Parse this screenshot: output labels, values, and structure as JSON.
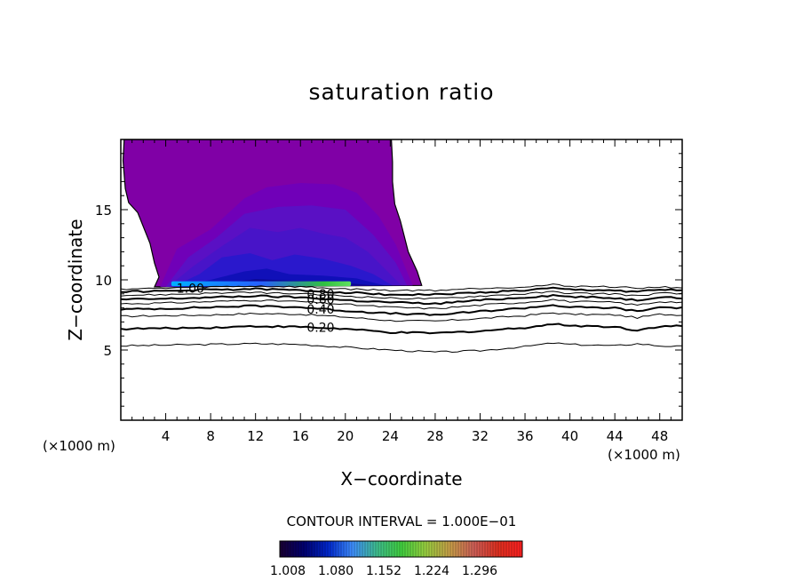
{
  "chart_data": {
    "type": "contour",
    "title": "saturation ratio",
    "xlabel": "X−coordinate",
    "ylabel": "Z−coordinate",
    "x_unit_label": "(×1000 m)",
    "y_unit_label": "(×1000 m)",
    "xlim": [
      0,
      50
    ],
    "ylim": [
      0,
      20
    ],
    "x_ticks": [
      4,
      8,
      12,
      16,
      20,
      24,
      28,
      32,
      36,
      40,
      44,
      48
    ],
    "y_ticks": [
      5,
      10,
      15
    ],
    "contour_interval_label": "CONTOUR INTERVAL = 1.000E−01",
    "contour_labels": [
      {
        "text": "1.00",
        "x": 6.2,
        "y": 9.4
      },
      {
        "text": "0.80",
        "x": 17.8,
        "y": 9.0
      },
      {
        "text": "0.60",
        "x": 17.8,
        "y": 8.6
      },
      {
        "text": "0.40",
        "x": 17.8,
        "y": 7.9
      },
      {
        "text": "0.20",
        "x": 17.8,
        "y": 6.6
      }
    ],
    "series": [
      {
        "values": [
          [
            0,
            5.3
          ],
          [
            4,
            5.35
          ],
          [
            8,
            5.4
          ],
          [
            12,
            5.45
          ],
          [
            16,
            5.4
          ],
          [
            20,
            5.2
          ],
          [
            24,
            5.0
          ],
          [
            28,
            4.85
          ],
          [
            32,
            4.95
          ],
          [
            36,
            5.25
          ],
          [
            38.5,
            5.5
          ],
          [
            40,
            5.4
          ],
          [
            44,
            5.3
          ],
          [
            46,
            5.45
          ],
          [
            48,
            5.3
          ],
          [
            50,
            5.25
          ]
        ]
      },
      {
        "values": [
          [
            0,
            6.5
          ],
          [
            4,
            6.55
          ],
          [
            8,
            6.6
          ],
          [
            12,
            6.7
          ],
          [
            16,
            6.65
          ],
          [
            20,
            6.5
          ],
          [
            24,
            6.25
          ],
          [
            28,
            6.2
          ],
          [
            32,
            6.35
          ],
          [
            36,
            6.6
          ],
          [
            38.5,
            6.85
          ],
          [
            40,
            6.75
          ],
          [
            44,
            6.65
          ],
          [
            46,
            6.4
          ],
          [
            48,
            6.7
          ],
          [
            50,
            6.7
          ]
        ]
      },
      {
        "values": [
          [
            0,
            7.4
          ],
          [
            4,
            7.45
          ],
          [
            8,
            7.5
          ],
          [
            12,
            7.6
          ],
          [
            16,
            7.55
          ],
          [
            20,
            7.35
          ],
          [
            24,
            7.1
          ],
          [
            28,
            7.05
          ],
          [
            32,
            7.25
          ],
          [
            36,
            7.45
          ],
          [
            38.5,
            7.65
          ],
          [
            40,
            7.55
          ],
          [
            44,
            7.5
          ],
          [
            46,
            7.3
          ],
          [
            48,
            7.55
          ],
          [
            50,
            7.5
          ]
        ]
      },
      {
        "values": [
          [
            0,
            7.9
          ],
          [
            4,
            7.95
          ],
          [
            8,
            8.05
          ],
          [
            12,
            8.15
          ],
          [
            16,
            8.05
          ],
          [
            20,
            7.8
          ],
          [
            24,
            7.6
          ],
          [
            28,
            7.5
          ],
          [
            32,
            7.75
          ],
          [
            36,
            8.0
          ],
          [
            38.5,
            8.2
          ],
          [
            40,
            8.05
          ],
          [
            44,
            8.0
          ],
          [
            46,
            7.75
          ],
          [
            48,
            8.05
          ],
          [
            50,
            8.0
          ]
        ]
      },
      {
        "values": [
          [
            0,
            8.3
          ],
          [
            4,
            8.35
          ],
          [
            8,
            8.45
          ],
          [
            12,
            8.55
          ],
          [
            16,
            8.45
          ],
          [
            20,
            8.25
          ],
          [
            24,
            8.05
          ],
          [
            28,
            7.95
          ],
          [
            32,
            8.2
          ],
          [
            36,
            8.4
          ],
          [
            38.5,
            8.6
          ],
          [
            40,
            8.45
          ],
          [
            44,
            8.4
          ],
          [
            46,
            8.2
          ],
          [
            48,
            8.45
          ],
          [
            50,
            8.4
          ]
        ]
      },
      {
        "values": [
          [
            0,
            8.6
          ],
          [
            4,
            8.65
          ],
          [
            8,
            8.75
          ],
          [
            12,
            8.85
          ],
          [
            16,
            8.75
          ],
          [
            20,
            8.55
          ],
          [
            24,
            8.4
          ],
          [
            28,
            8.3
          ],
          [
            32,
            8.55
          ],
          [
            36,
            8.75
          ],
          [
            38.5,
            8.9
          ],
          [
            40,
            8.8
          ],
          [
            44,
            8.7
          ],
          [
            46,
            8.55
          ],
          [
            48,
            8.8
          ],
          [
            50,
            8.7
          ]
        ]
      },
      {
        "values": [
          [
            0,
            8.9
          ],
          [
            4,
            8.95
          ],
          [
            8,
            9.05
          ],
          [
            12,
            9.1
          ],
          [
            16,
            9.0
          ],
          [
            20,
            8.85
          ],
          [
            24,
            8.7
          ],
          [
            28,
            8.65
          ],
          [
            32,
            8.85
          ],
          [
            36,
            9.0
          ],
          [
            38.5,
            9.15
          ],
          [
            40,
            9.05
          ],
          [
            44,
            9.0
          ],
          [
            46,
            8.85
          ],
          [
            48,
            9.05
          ],
          [
            50,
            9.0
          ]
        ]
      },
      {
        "values": [
          [
            0,
            9.15
          ],
          [
            4,
            9.2
          ],
          [
            8,
            9.3
          ],
          [
            12,
            9.35
          ],
          [
            16,
            9.25
          ],
          [
            20,
            9.1
          ],
          [
            24,
            8.95
          ],
          [
            28,
            8.95
          ],
          [
            32,
            9.1
          ],
          [
            36,
            9.25
          ],
          [
            38.5,
            9.4
          ],
          [
            40,
            9.3
          ],
          [
            44,
            9.25
          ],
          [
            46,
            9.15
          ],
          [
            48,
            9.3
          ],
          [
            50,
            9.25
          ]
        ]
      },
      {
        "values": [
          [
            0,
            9.35
          ],
          [
            4,
            9.4
          ],
          [
            8,
            9.5
          ],
          [
            12,
            9.55
          ],
          [
            16,
            9.5
          ],
          [
            20,
            9.35
          ],
          [
            24,
            9.25
          ],
          [
            28,
            9.25
          ],
          [
            32,
            9.4
          ],
          [
            36,
            9.5
          ],
          [
            38.5,
            9.65
          ],
          [
            40,
            9.55
          ],
          [
            44,
            9.5
          ],
          [
            46,
            9.4
          ],
          [
            48,
            9.5
          ],
          [
            50,
            9.45
          ]
        ]
      }
    ],
    "filled_region": {
      "boundary": [
        [
          0.3,
          20
        ],
        [
          0.2,
          18.5
        ],
        [
          0.4,
          16.5
        ],
        [
          0.7,
          15.5
        ],
        [
          1.5,
          14.8
        ],
        [
          2.6,
          12.6
        ],
        [
          3.0,
          11.2
        ],
        [
          3.4,
          10.2
        ],
        [
          3.0,
          9.5
        ],
        [
          26.8,
          9.6
        ],
        [
          26.4,
          10.6
        ],
        [
          25.6,
          12.0
        ],
        [
          24.9,
          14.2
        ],
        [
          24.4,
          15.4
        ],
        [
          24.2,
          17.0
        ],
        [
          24.2,
          18.4
        ],
        [
          24.1,
          20
        ]
      ],
      "top_color": "#8000a6"
    },
    "colorbar": {
      "tick_labels": [
        "1.008",
        "1.080",
        "1.152",
        "1.224",
        "1.296"
      ],
      "colors": [
        "#1a0033",
        "#000070",
        "#0028d0",
        "#3f8fff",
        "#3fbf8f",
        "#40d040",
        "#98d040",
        "#c8a048",
        "#d06058",
        "#e03020",
        "#ff2020"
      ]
    },
    "grid": false,
    "legend": "none"
  }
}
